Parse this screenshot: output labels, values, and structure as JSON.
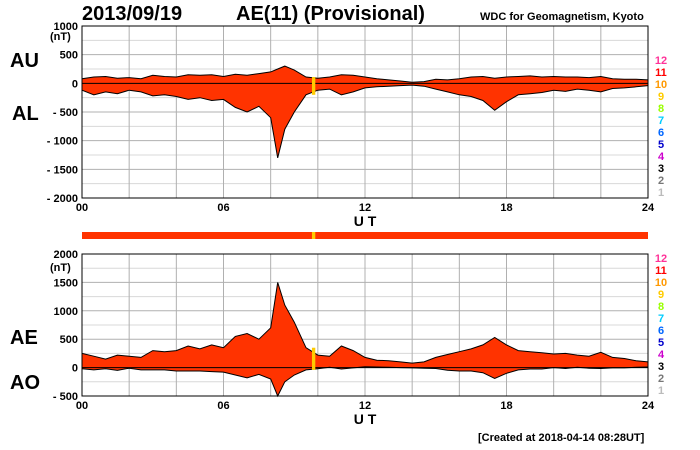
{
  "header": {
    "date": "2013/09/19",
    "title": "AE(11) (Provisional)",
    "source": "WDC for Geomagnetism, Kyoto"
  },
  "footer": {
    "created": "[Created at 2018-04-14 08:28UT]"
  },
  "colors": {
    "fill": "#ff3300",
    "gap": "#ffcc00",
    "grid": "#b0b0b0",
    "line": "#000000"
  },
  "legend": {
    "items": [
      {
        "label": "12",
        "color": "#ff3399"
      },
      {
        "label": "11",
        "color": "#ff0000"
      },
      {
        "label": "10",
        "color": "#ff9900"
      },
      {
        "label": "9",
        "color": "#ffcc00"
      },
      {
        "label": "8",
        "color": "#99ff00"
      },
      {
        "label": "7",
        "color": "#00ccff"
      },
      {
        "label": "6",
        "color": "#0066ff"
      },
      {
        "label": "5",
        "color": "#0000cc"
      },
      {
        "label": "4",
        "color": "#cc00cc"
      },
      {
        "label": "3",
        "color": "#000000"
      },
      {
        "label": "2",
        "color": "#777777"
      },
      {
        "label": "1",
        "color": "#bbbbbb"
      }
    ]
  },
  "chart_data": [
    {
      "type": "area",
      "panel": "AU/AL",
      "labels": {
        "upper": "AU",
        "lower": "AL"
      },
      "unit": "(nT)",
      "xlabel": "U T",
      "xlim": [
        0,
        24
      ],
      "xticks": [
        "00",
        "06",
        "12",
        "18",
        "24"
      ],
      "ylim": [
        -2000,
        1000
      ],
      "yticks": [
        "1000",
        "500",
        "0",
        "- 500",
        "- 1000",
        "- 1500",
        "- 2000"
      ],
      "grid": true,
      "data_gap": [
        9.75,
        9.85
      ],
      "series": [
        {
          "name": "AU",
          "x": [
            0,
            0.5,
            1,
            1.5,
            2,
            2.5,
            3,
            3.5,
            4,
            4.5,
            5,
            5.5,
            6,
            6.5,
            7,
            7.5,
            8,
            8.3,
            8.6,
            9,
            9.5,
            10,
            10.5,
            11,
            11.5,
            12,
            12.5,
            13,
            13.5,
            14,
            14.5,
            15,
            15.5,
            16,
            16.5,
            17,
            17.5,
            18,
            18.5,
            19,
            19.5,
            20,
            20.5,
            21,
            21.5,
            22,
            22.5,
            23,
            23.5,
            24
          ],
          "values": [
            80,
            110,
            120,
            90,
            100,
            80,
            140,
            120,
            110,
            150,
            140,
            150,
            120,
            160,
            140,
            170,
            200,
            250,
            300,
            230,
            110,
            90,
            110,
            150,
            140,
            110,
            80,
            60,
            40,
            20,
            30,
            70,
            60,
            80,
            110,
            120,
            90,
            110,
            120,
            130,
            110,
            120,
            110,
            110,
            100,
            120,
            80,
            70,
            70,
            60
          ]
        },
        {
          "name": "AL",
          "x": [
            0,
            0.5,
            1,
            1.5,
            2,
            2.5,
            3,
            3.5,
            4,
            4.5,
            5,
            5.5,
            6,
            6.5,
            7,
            7.5,
            8,
            8.3,
            8.6,
            9,
            9.5,
            10,
            10.5,
            11,
            11.5,
            12,
            12.5,
            13,
            13.5,
            14,
            14.5,
            15,
            15.5,
            16,
            16.5,
            17,
            17.5,
            18,
            18.5,
            19,
            19.5,
            20,
            20.5,
            21,
            21.5,
            22,
            22.5,
            23,
            23.5,
            24
          ],
          "values": [
            -120,
            -200,
            -150,
            -180,
            -120,
            -150,
            -220,
            -200,
            -230,
            -280,
            -250,
            -300,
            -280,
            -420,
            -500,
            -400,
            -600,
            -1300,
            -800,
            -500,
            -200,
            -120,
            -100,
            -200,
            -150,
            -80,
            -60,
            -50,
            -40,
            -30,
            -50,
            -100,
            -150,
            -200,
            -230,
            -300,
            -470,
            -320,
            -200,
            -180,
            -160,
            -120,
            -140,
            -100,
            -120,
            -150,
            -90,
            -80,
            -60,
            -40
          ]
        }
      ]
    },
    {
      "type": "area",
      "panel": "AE/AO",
      "labels": {
        "upper": "AE",
        "lower": "AO"
      },
      "unit": "(nT)",
      "xlabel": "U T",
      "xlim": [
        0,
        24
      ],
      "xticks": [
        "00",
        "06",
        "12",
        "18",
        "24"
      ],
      "ylim": [
        -500,
        2000
      ],
      "yticks": [
        "2000",
        "1500",
        "1000",
        "500",
        "0",
        "- 500"
      ],
      "grid": true,
      "data_gap": [
        9.75,
        9.85
      ],
      "series": [
        {
          "name": "AE",
          "x": [
            0,
            0.5,
            1,
            1.5,
            2,
            2.5,
            3,
            3.5,
            4,
            4.5,
            5,
            5.5,
            6,
            6.5,
            7,
            7.5,
            8,
            8.3,
            8.6,
            9,
            9.5,
            10,
            10.5,
            11,
            11.5,
            12,
            12.5,
            13,
            13.5,
            14,
            14.5,
            15,
            15.5,
            16,
            16.5,
            17,
            17.5,
            18,
            18.5,
            19,
            19.5,
            20,
            20.5,
            21,
            21.5,
            22,
            22.5,
            23,
            23.5,
            24
          ],
          "values": [
            250,
            200,
            150,
            220,
            200,
            180,
            300,
            280,
            300,
            380,
            330,
            400,
            350,
            550,
            600,
            500,
            700,
            1500,
            1100,
            800,
            350,
            220,
            200,
            380,
            300,
            180,
            130,
            120,
            100,
            80,
            100,
            180,
            230,
            280,
            330,
            400,
            530,
            400,
            300,
            280,
            260,
            240,
            250,
            220,
            200,
            270,
            180,
            160,
            120,
            100
          ]
        },
        {
          "name": "AO",
          "x": [
            0,
            0.5,
            1,
            1.5,
            2,
            2.5,
            3,
            3.5,
            4,
            4.5,
            5,
            5.5,
            6,
            6.5,
            7,
            7.5,
            8,
            8.3,
            8.6,
            9,
            9.5,
            10,
            10.5,
            11,
            11.5,
            12,
            12.5,
            13,
            13.5,
            14,
            14.5,
            15,
            15.5,
            16,
            16.5,
            17,
            17.5,
            18,
            18.5,
            19,
            19.5,
            20,
            20.5,
            21,
            21.5,
            22,
            22.5,
            23,
            23.5,
            24
          ],
          "values": [
            -20,
            -40,
            -20,
            -50,
            -10,
            -40,
            -40,
            -40,
            -60,
            -60,
            -60,
            -70,
            -80,
            -130,
            -180,
            -120,
            -200,
            -500,
            -250,
            -130,
            -40,
            -20,
            5,
            -25,
            -5,
            15,
            10,
            5,
            0,
            -5,
            -10,
            -15,
            -45,
            -60,
            -60,
            -90,
            -190,
            -100,
            -40,
            -25,
            -25,
            0,
            -15,
            5,
            -10,
            -15,
            -5,
            -5,
            5,
            10
          ]
        }
      ]
    }
  ]
}
